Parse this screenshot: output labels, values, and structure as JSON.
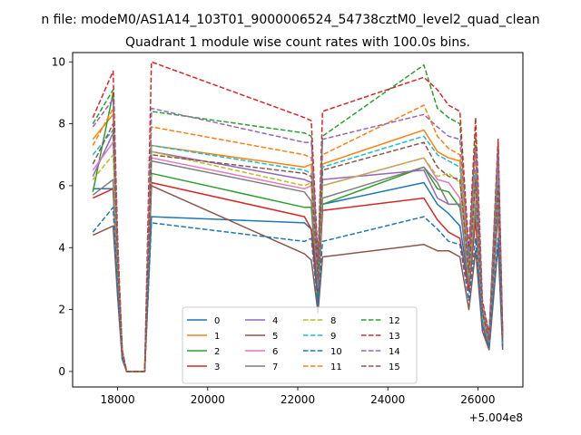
{
  "figure": {
    "suptitle": "n file: modeM0/AS1A14_103T01_9000006524_54738cztM0_level2_quad_clean",
    "title": "Quadrant 1 module wise count rates with 100.0s bins.",
    "x_offset_label": "+5.004e8"
  },
  "chart_data": {
    "type": "line",
    "title": "Quadrant 1 module wise count rates with 100.0s bins.",
    "xlabel": "",
    "ylabel": "",
    "x_offset": 500400000,
    "xlim": [
      17000,
      27000
    ],
    "ylim": [
      -0.5,
      10.3
    ],
    "xticks": [
      18000,
      20000,
      22000,
      24000,
      26000
    ],
    "xtick_labels": [
      "18000",
      "20000",
      "22000",
      "24000",
      "26000"
    ],
    "yticks": [
      0,
      2,
      4,
      6,
      8,
      10
    ],
    "ytick_labels": [
      "0",
      "2",
      "4",
      "6",
      "8",
      "10"
    ],
    "grid": false,
    "legend": {
      "placement": "lower center",
      "columns": 4
    },
    "x_keypoints": [
      17450,
      17900,
      18000,
      18100,
      18200,
      18550,
      18600,
      18750,
      22150,
      22300,
      22450,
      22550,
      24800,
      25100,
      25350,
      25600,
      25800,
      25950,
      26100,
      26250,
      26450,
      26550
    ],
    "series": [
      {
        "name": "0",
        "color": "#1f77b4",
        "dashed": false,
        "values": [
          5.9,
          5.9,
          3.0,
          0.5,
          0.0,
          0.0,
          0.0,
          5.0,
          4.8,
          4.6,
          2.2,
          5.4,
          6.1,
          5.4,
          5.1,
          4.7,
          2.8,
          5.0,
          1.5,
          0.9,
          7.0,
          0.9
        ]
      },
      {
        "name": "1",
        "color": "#ff7f0e",
        "dashed": false,
        "values": [
          7.5,
          8.3,
          3.5,
          0.6,
          0.0,
          0.0,
          0.0,
          7.3,
          6.6,
          6.7,
          3.2,
          6.7,
          7.8,
          7.1,
          6.9,
          6.8,
          2.9,
          6.5,
          1.9,
          1.0,
          6.4,
          0.8
        ]
      },
      {
        "name": "2",
        "color": "#2ca02c",
        "dashed": false,
        "values": [
          5.8,
          9.0,
          3.2,
          0.6,
          0.0,
          0.0,
          0.0,
          6.4,
          5.3,
          5.3,
          2.5,
          5.4,
          6.6,
          5.9,
          5.8,
          5.3,
          3.1,
          5.5,
          1.7,
          0.9,
          5.6,
          1.3
        ]
      },
      {
        "name": "3",
        "color": "#d62728",
        "dashed": false,
        "values": [
          5.6,
          5.9,
          3.0,
          0.5,
          0.0,
          0.0,
          0.0,
          6.1,
          5.0,
          4.6,
          2.6,
          5.2,
          5.6,
          4.9,
          4.5,
          4.3,
          2.6,
          4.9,
          1.5,
          0.8,
          5.2,
          0.8
        ]
      },
      {
        "name": "4",
        "color": "#9467bd",
        "dashed": false,
        "values": [
          6.3,
          7.7,
          3.4,
          0.6,
          0.0,
          0.0,
          0.0,
          7.1,
          6.2,
          6.1,
          2.9,
          6.2,
          6.5,
          5.6,
          5.4,
          5.4,
          2.9,
          5.8,
          1.7,
          0.9,
          5.4,
          0.9
        ]
      },
      {
        "name": "5",
        "color": "#8c564b",
        "dashed": false,
        "values": [
          4.4,
          4.7,
          2.4,
          0.4,
          0.0,
          0.0,
          0.0,
          6.0,
          3.8,
          3.6,
          1.9,
          3.7,
          4.1,
          3.9,
          3.9,
          3.7,
          2.0,
          3.9,
          1.3,
          0.7,
          4.1,
          0.7
        ]
      },
      {
        "name": "6",
        "color": "#e377c2",
        "dashed": false,
        "values": [
          6.5,
          7.4,
          3.3,
          0.5,
          0.0,
          0.0,
          0.0,
          6.9,
          5.9,
          6.0,
          2.9,
          6.0,
          6.9,
          6.2,
          6.1,
          5.6,
          3.0,
          5.8,
          1.7,
          0.9,
          5.8,
          0.9
        ]
      },
      {
        "name": "7",
        "color": "#7f7f7f",
        "dashed": false,
        "values": [
          5.7,
          6.2,
          3.0,
          0.5,
          0.0,
          0.0,
          0.0,
          6.8,
          5.8,
          5.5,
          2.7,
          5.6,
          6.6,
          6.1,
          5.4,
          5.4,
          2.8,
          5.3,
          1.6,
          0.9,
          5.4,
          0.9
        ]
      },
      {
        "name": "8",
        "color": "#bcbd22",
        "dashed": true,
        "values": [
          6.2,
          7.0,
          3.4,
          0.6,
          0.0,
          0.0,
          0.0,
          7.1,
          6.0,
          6.1,
          3.0,
          6.0,
          6.9,
          6.3,
          6.4,
          6.1,
          3.1,
          6.0,
          1.8,
          1.0,
          6.1,
          1.0
        ]
      },
      {
        "name": "9",
        "color": "#17becf",
        "dashed": true,
        "values": [
          7.0,
          7.8,
          3.6,
          0.6,
          0.0,
          0.0,
          0.0,
          7.3,
          6.5,
          6.4,
          3.0,
          6.6,
          7.6,
          7.0,
          6.8,
          6.6,
          3.3,
          6.5,
          1.9,
          1.0,
          6.4,
          1.0
        ]
      },
      {
        "name": "10",
        "color": "#1f77b4",
        "dashed": true,
        "values": [
          4.5,
          5.3,
          2.6,
          0.4,
          0.0,
          0.0,
          0.0,
          4.8,
          4.2,
          4.3,
          2.1,
          4.2,
          5.0,
          4.6,
          4.2,
          4.1,
          2.3,
          4.3,
          1.4,
          0.8,
          4.3,
          0.8
        ]
      },
      {
        "name": "11",
        "color": "#ff7f0e",
        "dashed": true,
        "values": [
          7.3,
          8.5,
          3.8,
          0.6,
          0.0,
          0.0,
          0.0,
          7.9,
          7.0,
          6.9,
          3.3,
          7.0,
          8.6,
          7.6,
          7.2,
          7.0,
          3.5,
          7.1,
          2.0,
          1.1,
          7.0,
          1.1
        ]
      },
      {
        "name": "12",
        "color": "#2ca02c",
        "dashed": true,
        "values": [
          8.0,
          9.1,
          4.1,
          0.7,
          0.0,
          0.0,
          0.0,
          8.4,
          7.7,
          7.6,
          3.5,
          7.6,
          9.9,
          8.5,
          8.2,
          8.0,
          3.7,
          7.7,
          2.2,
          1.2,
          7.4,
          1.2
        ]
      },
      {
        "name": "13",
        "color": "#d62728",
        "dashed": true,
        "values": [
          8.2,
          9.7,
          4.3,
          0.7,
          0.0,
          0.0,
          0.0,
          10.0,
          8.2,
          8.1,
          3.6,
          8.4,
          9.5,
          9.1,
          8.6,
          8.4,
          3.9,
          8.2,
          2.3,
          1.2,
          7.5,
          1.2
        ]
      },
      {
        "name": "14",
        "color": "#9467bd",
        "dashed": true,
        "values": [
          7.9,
          8.8,
          4.0,
          0.7,
          0.0,
          0.0,
          0.0,
          8.5,
          7.4,
          7.4,
          3.4,
          7.5,
          8.3,
          7.9,
          7.6,
          7.5,
          3.6,
          7.2,
          2.1,
          1.1,
          7.0,
          1.1
        ]
      },
      {
        "name": "15",
        "color": "#8c564b",
        "dashed": true,
        "values": [
          6.7,
          8.0,
          3.6,
          0.6,
          0.0,
          0.0,
          0.0,
          7.0,
          6.4,
          6.3,
          3.0,
          6.5,
          7.4,
          6.6,
          6.3,
          6.2,
          3.2,
          6.2,
          1.9,
          1.0,
          6.0,
          1.0
        ]
      }
    ]
  }
}
